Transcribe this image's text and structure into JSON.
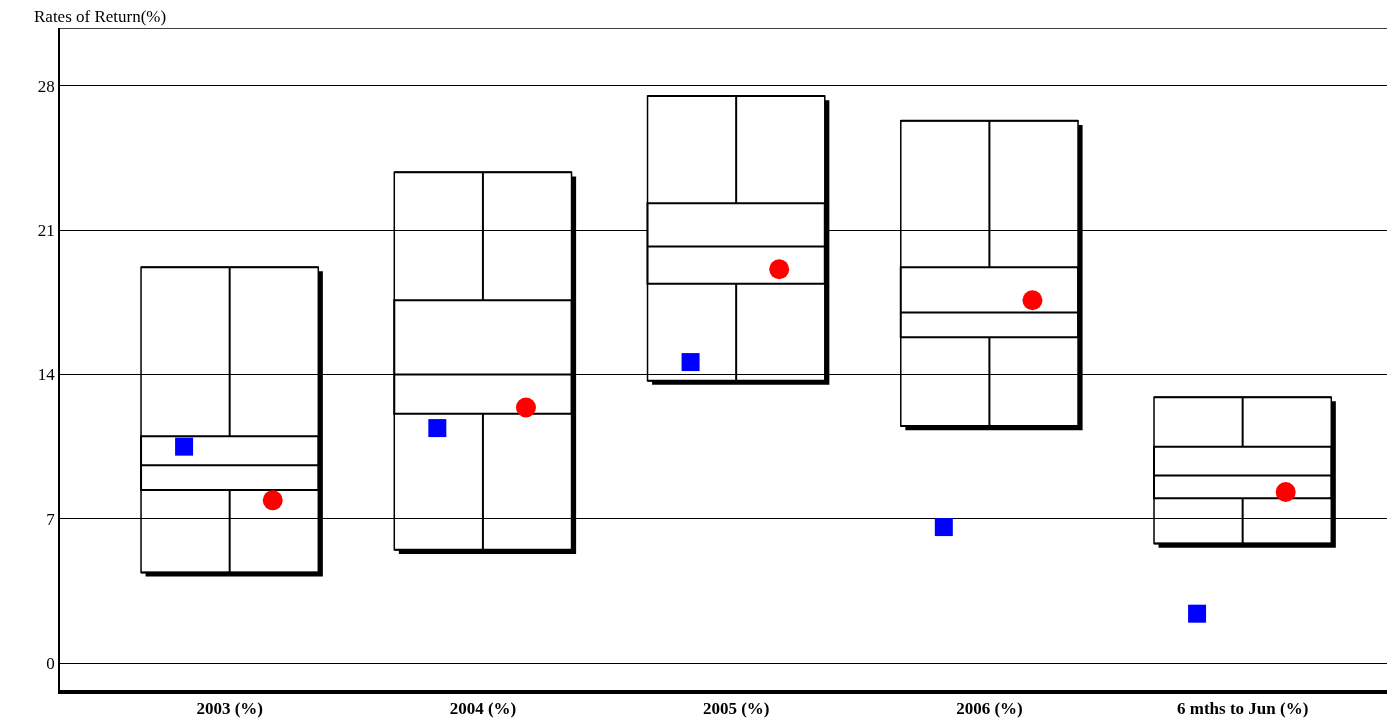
{
  "chart_data": {
    "type": "box",
    "ylabel": "Rates of Return(%)",
    "categories": [
      "2003 (%)",
      "2004 (%)",
      "2005 (%)",
      "2006 (%)",
      "6 mths to Jun (%)"
    ],
    "boxes": [
      {
        "low": 4.4,
        "q1": 8.4,
        "median": 9.6,
        "q3": 11.0,
        "high": 19.2
      },
      {
        "low": 5.5,
        "q1": 12.1,
        "median": 14.0,
        "q3": 17.6,
        "high": 23.8
      },
      {
        "low": 13.7,
        "q1": 18.4,
        "median": 20.2,
        "q3": 22.3,
        "high": 27.5
      },
      {
        "low": 11.5,
        "q1": 15.8,
        "median": 17.0,
        "q3": 19.2,
        "high": 26.3
      },
      {
        "low": 5.8,
        "q1": 8.0,
        "median": 9.1,
        "q3": 10.5,
        "high": 12.9
      }
    ],
    "series": [
      {
        "type": "scatter",
        "marker": "square",
        "color": "#0000ff",
        "values": [
          10.5,
          11.4,
          14.6,
          6.6,
          2.4
        ]
      },
      {
        "type": "scatter",
        "marker": "circle",
        "color": "#ff0000",
        "values": [
          7.9,
          12.4,
          19.1,
          17.6,
          8.3
        ]
      }
    ],
    "ylim": [
      -1.3,
      30.8
    ],
    "yticks": [
      0,
      7,
      14,
      21,
      28
    ],
    "grid": "y"
  }
}
